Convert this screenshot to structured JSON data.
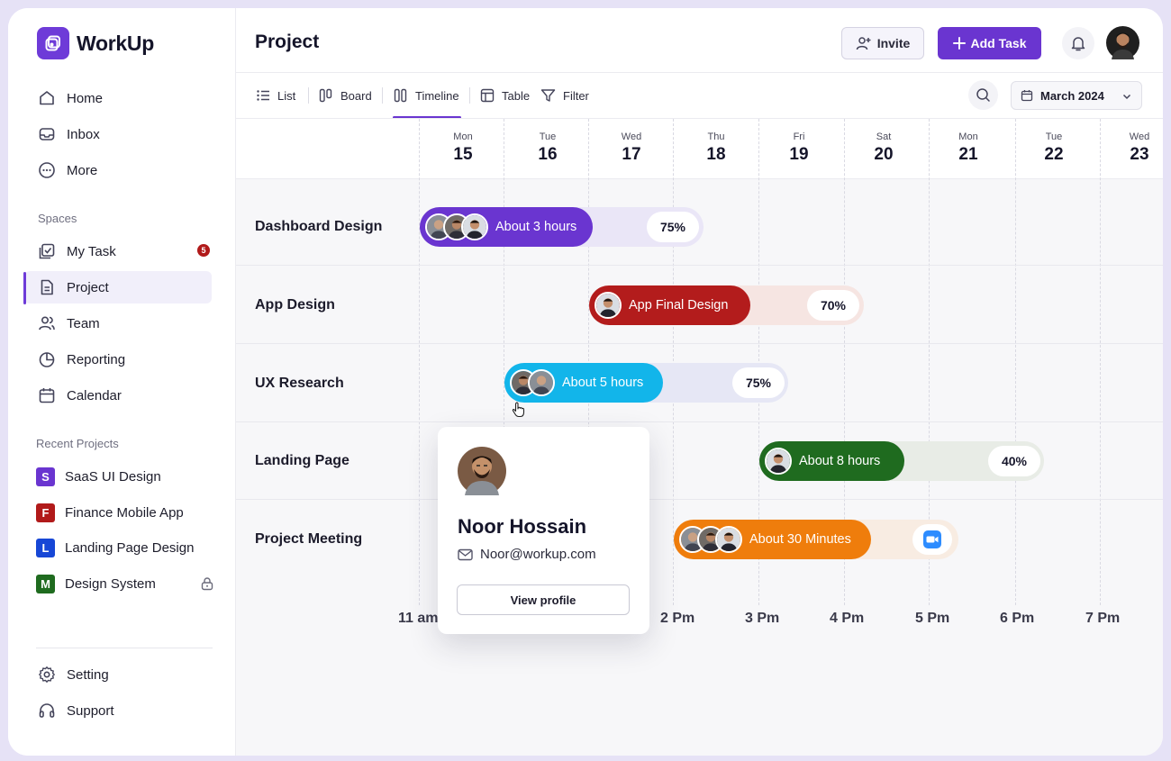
{
  "app": {
    "name": "WorkUp"
  },
  "sidebar": {
    "main_items": [
      {
        "label": "Home",
        "icon": "home-icon"
      },
      {
        "label": "Inbox",
        "icon": "inbox-icon"
      },
      {
        "label": "More",
        "icon": "more-icon"
      }
    ],
    "spaces_label": "Spaces",
    "spaces_items": [
      {
        "label": "My Task",
        "icon": "task-icon",
        "badge": "5"
      },
      {
        "label": "Project",
        "icon": "document-icon",
        "active": true
      },
      {
        "label": "Team",
        "icon": "team-icon"
      },
      {
        "label": "Reporting",
        "icon": "pie-chart-icon"
      },
      {
        "label": "Calendar",
        "icon": "calendar-icon"
      }
    ],
    "recent_label": "Recent Projects",
    "recent_items": [
      {
        "letter": "S",
        "label": "SaaS UI Design",
        "color": "#6a35d0"
      },
      {
        "letter": "F",
        "label": "Finance Mobile App",
        "color": "#b11a1a"
      },
      {
        "letter": "L",
        "label": "Landing Page Design",
        "color": "#1747d6"
      },
      {
        "letter": "M",
        "label": "Design System",
        "color": "#1f6b1f",
        "locked": true
      }
    ],
    "bottom_items": [
      {
        "label": "Setting",
        "icon": "gear-icon"
      },
      {
        "label": "Support",
        "icon": "headset-icon"
      }
    ]
  },
  "header": {
    "title": "Project",
    "invite_label": "Invite",
    "add_task_label": "Add Task"
  },
  "views": {
    "tabs": [
      {
        "label": "List",
        "icon": "list-icon"
      },
      {
        "label": "Board",
        "icon": "board-icon"
      },
      {
        "label": "Timeline",
        "icon": "timeline-icon",
        "active": true
      },
      {
        "label": "Table",
        "icon": "table-icon"
      }
    ],
    "filter_label": "Filter",
    "month": "March 2024"
  },
  "timeline": {
    "days": [
      {
        "name": "Mon",
        "date": "15"
      },
      {
        "name": "Tue",
        "date": "16"
      },
      {
        "name": "Wed",
        "date": "17"
      },
      {
        "name": "Thu",
        "date": "18"
      },
      {
        "name": "Fri",
        "date": "19"
      },
      {
        "name": "Sat",
        "date": "20"
      },
      {
        "name": "Mon",
        "date": "21"
      },
      {
        "name": "Tue",
        "date": "22"
      },
      {
        "name": "Wed",
        "date": "23"
      }
    ],
    "rows": [
      {
        "label": "Dashboard Design",
        "bar_text": "About 3 hours",
        "percent": "75%",
        "color": "#6a35d0",
        "progress": 0.75
      },
      {
        "label": "App Design",
        "bar_text": "App Final Design",
        "percent": "70%",
        "color": "#b31c1c",
        "progress": 0.7
      },
      {
        "label": "UX Research",
        "bar_text": "About 5 hours",
        "percent": "75%",
        "color": "#12b5ea",
        "progress": 0.75
      },
      {
        "label": "Landing Page",
        "bar_text": "About 8 hours",
        "percent": "40%",
        "color": "#1f6b1f",
        "progress": 0.4
      },
      {
        "label": "Project Meeting",
        "bar_text": "About 30 Minutes",
        "color": "#ef7d0c",
        "meeting_icon": "video-call-icon"
      }
    ],
    "times": [
      "11 am",
      "2 Pm",
      "3 Pm",
      "4 Pm",
      "5 Pm",
      "6 Pm",
      "7 Pm"
    ]
  },
  "profile_card": {
    "name": "Noor Hossain",
    "email": "Noor@workup.com",
    "button_label": "View profile"
  }
}
